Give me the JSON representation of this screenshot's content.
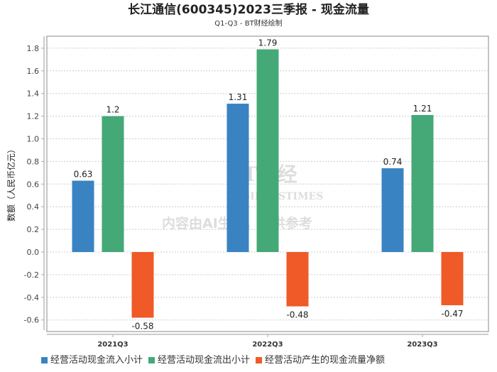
{
  "chart_data": {
    "type": "bar",
    "title": "长江通信(600345)2023三季报 - 现金流量",
    "subtitle": "Q1-Q3 - BT财经绘制",
    "xlabel": "",
    "ylabel": "数额（人民币亿元）",
    "categories": [
      "2021Q3",
      "2022Q3",
      "2023Q3"
    ],
    "ylim": [
      -0.69,
      1.91
    ],
    "yticks": [
      -0.6,
      -0.4,
      -0.2,
      0.0,
      0.2,
      0.4,
      0.6,
      0.8,
      1.0,
      1.2,
      1.4,
      1.6,
      1.8
    ],
    "grid": true,
    "legend_position": "bottom",
    "series": [
      {
        "name": "经营活动现金流入小计",
        "color": "#3a83c2",
        "values": [
          0.63,
          1.31,
          0.74
        ]
      },
      {
        "name": "经营活动现金流出小计",
        "color": "#45a877",
        "values": [
          1.2,
          1.79,
          1.21
        ]
      },
      {
        "name": "经营活动产生的现金流量净额",
        "color": "#f05a28",
        "values": [
          -0.58,
          -0.48,
          -0.47
        ]
      }
    ]
  },
  "watermark": {
    "brand": "BT财经",
    "brand_en": "BUSINESSTIMES",
    "notice": "内容由AI生成，仅供参考"
  }
}
